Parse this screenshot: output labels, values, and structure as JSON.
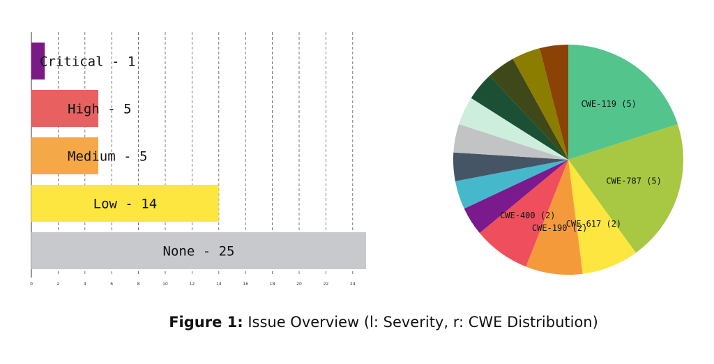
{
  "caption": {
    "label": "Figure 1:",
    "text": "Issue Overview (l: Severity, r: CWE Distribution)"
  },
  "chart_data": [
    {
      "type": "bar",
      "orientation": "horizontal",
      "title": "",
      "xlabel": "",
      "ylabel": "",
      "xlim": [
        0,
        25.5
      ],
      "x_ticks": [
        "0",
        "2",
        "4",
        "6",
        "8",
        "10",
        "12",
        "14",
        "16",
        "18",
        "20",
        "22",
        "24"
      ],
      "grid": "vertical-dashed",
      "bars": [
        {
          "label": "Critical - 1",
          "value": 1,
          "color": "#7b1a86"
        },
        {
          "label": "High - 5",
          "value": 5,
          "color": "#e8605f"
        },
        {
          "label": "Medium - 5",
          "value": 5,
          "color": "#f5a847"
        },
        {
          "label": "Low - 14",
          "value": 14,
          "color": "#fde63f"
        },
        {
          "label": "None - 25",
          "value": 25,
          "color": "#c8c9cc"
        }
      ]
    },
    {
      "type": "pie",
      "title": "",
      "start": "12 o'clock",
      "direction": "clockwise",
      "slices": [
        {
          "label": "CWE-119 (5)",
          "value": 5,
          "color": "#53c48c"
        },
        {
          "label": "CWE-787 (5)",
          "value": 5,
          "color": "#a8c843"
        },
        {
          "label": "CWE-617 (2)",
          "value": 2,
          "color": "#fde63f"
        },
        {
          "label": "CWE-190 (2)",
          "value": 2,
          "color": "#f59a3b"
        },
        {
          "label": "CWE-400 (2)",
          "value": 2,
          "color": "#ef4f5c"
        },
        {
          "label": "",
          "value": 1,
          "color": "#7a1a8c"
        },
        {
          "label": "",
          "value": 1,
          "color": "#46b8cb"
        },
        {
          "label": "",
          "value": 1,
          "color": "#465566"
        },
        {
          "label": "",
          "value": 1,
          "color": "#c2c3c5"
        },
        {
          "label": "",
          "value": 1,
          "color": "#cdeedd"
        },
        {
          "label": "",
          "value": 1,
          "color": "#1c5035"
        },
        {
          "label": "",
          "value": 1,
          "color": "#3f4818"
        },
        {
          "label": "",
          "value": 1,
          "color": "#8a7d00"
        },
        {
          "label": "",
          "value": 1,
          "color": "#8a4205"
        }
      ]
    }
  ]
}
